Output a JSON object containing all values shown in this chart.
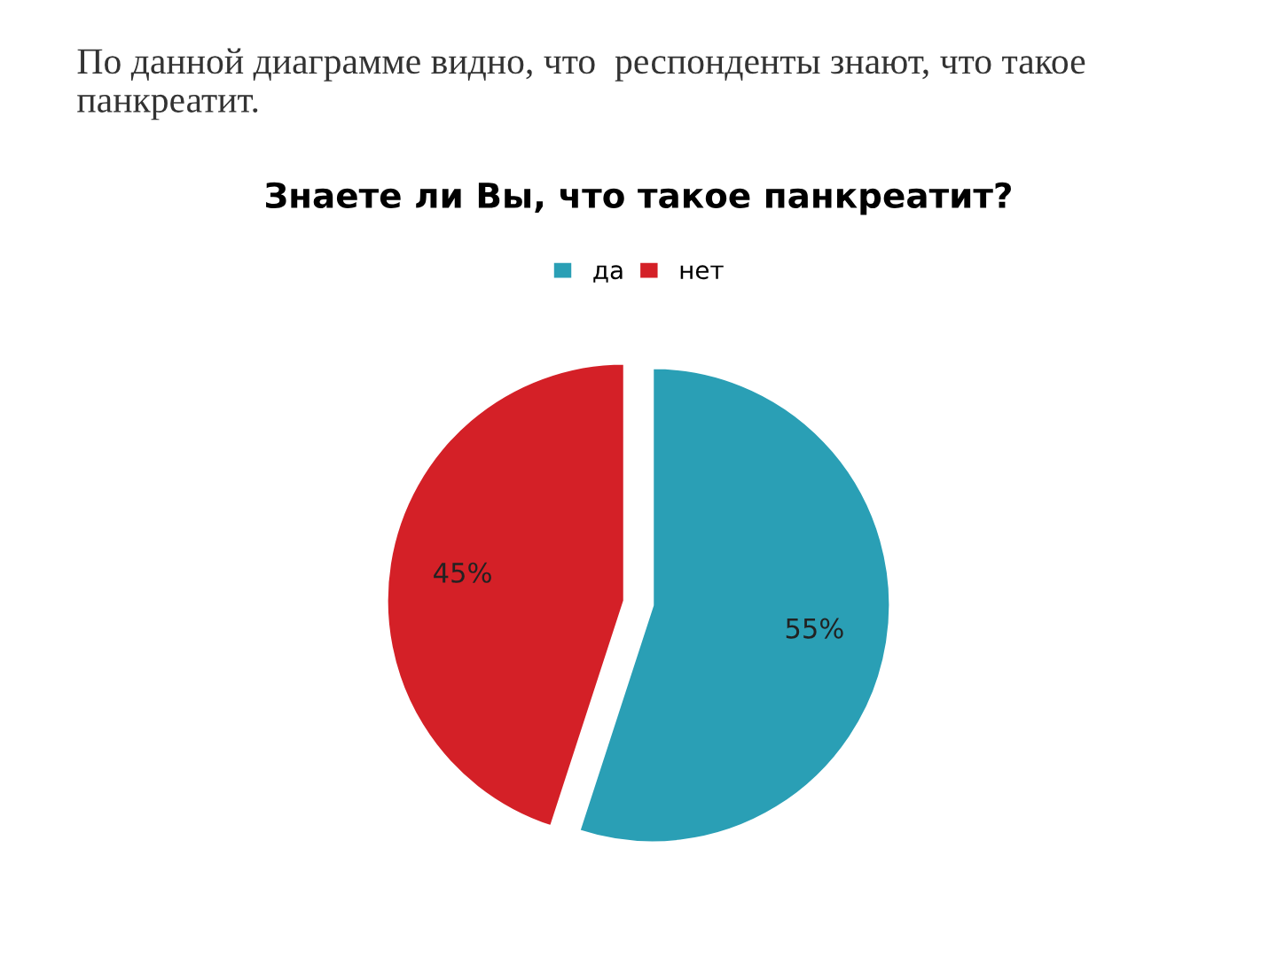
{
  "chart_data": {
    "type": "pie",
    "title": "Знаете ли Вы, что такое панкреатит?",
    "annotations": [
      "По данной диаграмме видно, что  респонденты знают, что такое панкреатит."
    ],
    "categories": [
      "да",
      "нет"
    ],
    "values": [
      55,
      45
    ],
    "value_labels": [
      "55%",
      "45%"
    ],
    "colors": [
      "#2a9fb5",
      "#d42027"
    ],
    "legend": "top"
  }
}
